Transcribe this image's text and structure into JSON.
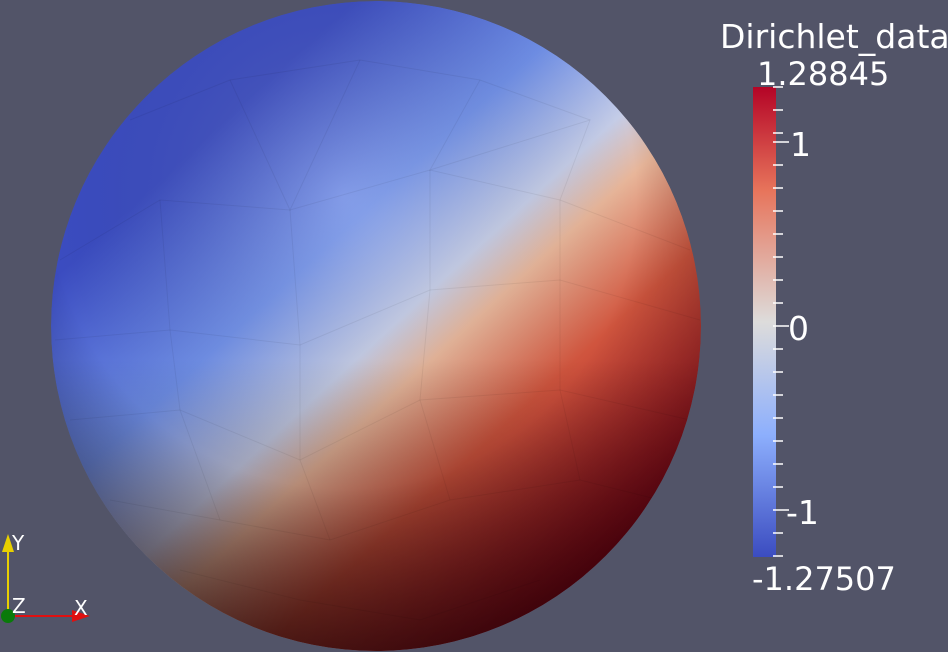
{
  "colorbar": {
    "title": "Dirichlet_data",
    "max_label": "1.28845",
    "min_label": "-1.27507",
    "range": [
      -1.27507,
      1.28845
    ],
    "ticks": [
      "1",
      "0",
      "-1"
    ],
    "colormap": "cool-to-warm",
    "colors": {
      "low": "#3b4cc0",
      "mid": "#dddcdb",
      "high": "#b40426"
    }
  },
  "axes": {
    "x_label": "X",
    "y_label": "Y",
    "z_label": "Z",
    "colors": {
      "x": "#e01010",
      "y": "#e8d000",
      "z": "#0a7a0a"
    }
  },
  "scene": {
    "object": "sphere",
    "background": "#525468"
  }
}
